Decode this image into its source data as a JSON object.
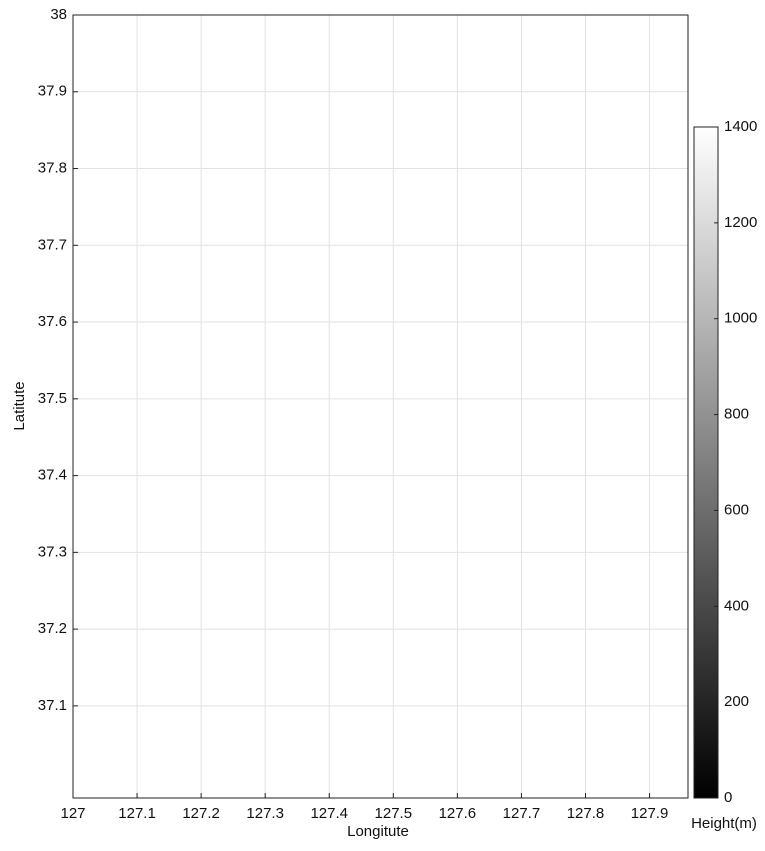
{
  "chart_data": {
    "type": "contour",
    "xlabel": "Longitute",
    "ylabel": "Latitute",
    "xlim": [
      127,
      127.96
    ],
    "ylim": [
      36.98,
      38
    ],
    "xticks": [
      127,
      127.1,
      127.2,
      127.3,
      127.4,
      127.5,
      127.6,
      127.7,
      127.8,
      127.9
    ],
    "yticks": [
      37.1,
      37.2,
      37.3,
      37.4,
      37.5,
      37.6,
      37.7,
      37.8,
      37.9,
      38
    ],
    "grid": true,
    "colorbar": {
      "label": "Height(m)",
      "clim": [
        0,
        1400
      ],
      "ticks": [
        0,
        200,
        400,
        600,
        800,
        1000,
        1200,
        1400
      ],
      "colors": [
        "#000000",
        "#ffffff"
      ]
    }
  }
}
